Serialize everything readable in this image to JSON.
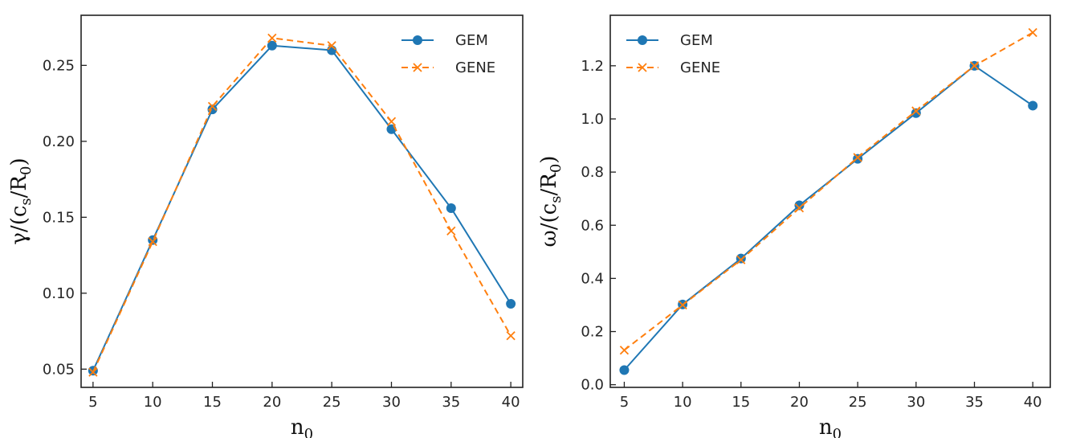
{
  "colors": {
    "gem": "#1f77b4",
    "gene": "#ff7f0e",
    "axes": "#222222"
  },
  "chart_data": [
    {
      "type": "line",
      "x": [
        5,
        10,
        15,
        20,
        25,
        30,
        35,
        40
      ],
      "xticks": [
        5,
        10,
        15,
        20,
        25,
        30,
        35,
        40
      ],
      "xlim": [
        4,
        41
      ],
      "xlabel": "n",
      "xlabel_sub": "0",
      "ylabel": "γ/(c",
      "ylabel_sub": "s",
      "ylabel_mid": "/R",
      "ylabel_sub2": "0",
      "ylabel_end": ")",
      "ylim": [
        0.038,
        0.283
      ],
      "yticks": [
        0.05,
        0.1,
        0.15,
        0.2,
        0.25
      ],
      "ytick_labels": [
        "0.05",
        "0.10",
        "0.15",
        "0.20",
        "0.25"
      ],
      "legend": "top-right",
      "grid": false,
      "series": [
        {
          "name": "GEM",
          "style": "solid-circle",
          "values": [
            0.049,
            0.135,
            0.221,
            0.263,
            0.26,
            0.208,
            0.156,
            0.093
          ]
        },
        {
          "name": "GENE",
          "style": "dashed-x",
          "values": [
            0.048,
            0.134,
            0.223,
            0.268,
            0.263,
            0.213,
            0.141,
            0.072
          ]
        }
      ]
    },
    {
      "type": "line",
      "x": [
        5,
        10,
        15,
        20,
        25,
        30,
        35,
        40
      ],
      "xticks": [
        5,
        10,
        15,
        20,
        25,
        30,
        35,
        40
      ],
      "xlim": [
        3.8,
        41.5
      ],
      "xlabel": "n",
      "xlabel_sub": "0",
      "ylabel": "ω/(c",
      "ylabel_sub": "s",
      "ylabel_mid": "/R",
      "ylabel_sub2": "0",
      "ylabel_end": ")",
      "ylim": [
        -0.01,
        1.39
      ],
      "yticks": [
        0.0,
        0.2,
        0.4,
        0.6,
        0.8,
        1.0,
        1.2
      ],
      "ytick_labels": [
        "0.0",
        "0.2",
        "0.4",
        "0.6",
        "0.8",
        "1.0",
        "1.2"
      ],
      "legend": "top-left",
      "grid": false,
      "series": [
        {
          "name": "GEM",
          "style": "solid-circle",
          "values": [
            0.055,
            0.302,
            0.475,
            0.675,
            0.85,
            1.022,
            1.2,
            1.05
          ]
        },
        {
          "name": "GENE",
          "style": "dashed-x",
          "values": [
            0.13,
            0.3,
            0.47,
            0.665,
            0.855,
            1.03,
            1.2,
            1.325
          ]
        }
      ]
    }
  ]
}
